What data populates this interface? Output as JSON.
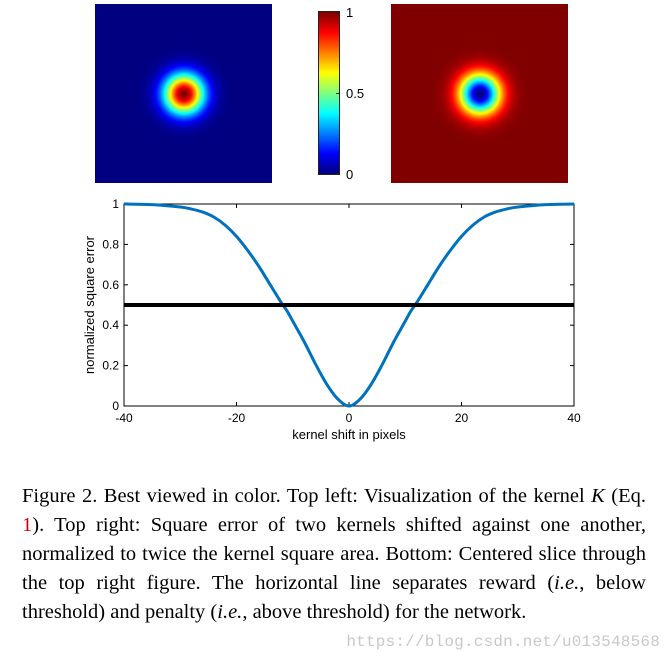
{
  "heatmaps": [
    {
      "name": "kernel-visualization",
      "center_value": 1,
      "edge_value": 0,
      "colormap": "jet"
    },
    {
      "name": "square-error-map",
      "center_value": 0,
      "edge_value": 1,
      "colormap": "jet"
    }
  ],
  "colorbar": {
    "colormap": "jet",
    "ticks": [
      {
        "value": 1,
        "label": "1"
      },
      {
        "value": 0.5,
        "label": "0.5"
      },
      {
        "value": 0,
        "label": "0"
      }
    ]
  },
  "chart_data": {
    "type": "line",
    "xlabel": "kernel shift in pixels",
    "ylabel": "normalized square error",
    "xlim": [
      -40,
      40
    ],
    "ylim": [
      0,
      1
    ],
    "xticks": [
      {
        "value": -40,
        "label": "-40"
      },
      {
        "value": -20,
        "label": "-20"
      },
      {
        "value": 0,
        "label": "0"
      },
      {
        "value": 20,
        "label": "20"
      },
      {
        "value": 40,
        "label": "40"
      }
    ],
    "yticks": [
      {
        "value": 0,
        "label": "0"
      },
      {
        "value": 0.2,
        "label": "0.2"
      },
      {
        "value": 0.4,
        "label": "0.4"
      },
      {
        "value": 0.6,
        "label": "0.6"
      },
      {
        "value": 0.8,
        "label": "0.8"
      },
      {
        "value": 1,
        "label": "1"
      }
    ],
    "series": [
      {
        "name": "normalized square error",
        "color": "#0072BD",
        "x": [
          -40,
          -35,
          -30,
          -28,
          -26,
          -24,
          -22,
          -20,
          -18,
          -16,
          -14,
          -12,
          -11,
          -10,
          -8,
          -6,
          -4,
          -2,
          0,
          2,
          4,
          6,
          8,
          10,
          11,
          12,
          14,
          16,
          18,
          20,
          22,
          24,
          26,
          28,
          30,
          35,
          40
        ],
        "y": [
          1.0,
          0.997,
          0.985,
          0.975,
          0.96,
          0.935,
          0.895,
          0.84,
          0.77,
          0.69,
          0.6,
          0.51,
          0.47,
          0.42,
          0.32,
          0.21,
          0.11,
          0.035,
          0.0,
          0.035,
          0.11,
          0.21,
          0.32,
          0.42,
          0.47,
          0.51,
          0.6,
          0.69,
          0.77,
          0.84,
          0.895,
          0.935,
          0.96,
          0.975,
          0.985,
          0.997,
          1.0
        ]
      },
      {
        "name": "threshold",
        "color": "#000000",
        "x": [
          -40,
          40
        ],
        "y": [
          0.5,
          0.5
        ]
      }
    ]
  },
  "caption": {
    "part1": "Figure 2. Best viewed in color. Top left: Visualization of the kernel ",
    "symbol": "K",
    "part2": " (Eq. ",
    "eq_ref": "1",
    "part3": "). Top right: Square error of two kernels shifted against one another, normalized to twice the kernel square area. Bottom: Centered slice through the top right figure. The horizontal line separates reward (",
    "ie1": "i.e.",
    "part4": ", below threshold) and penalty (",
    "ie2": "i.e.",
    "part5": ", above threshold) for the network."
  },
  "watermark": "https://blog.csdn.net/u013548568"
}
